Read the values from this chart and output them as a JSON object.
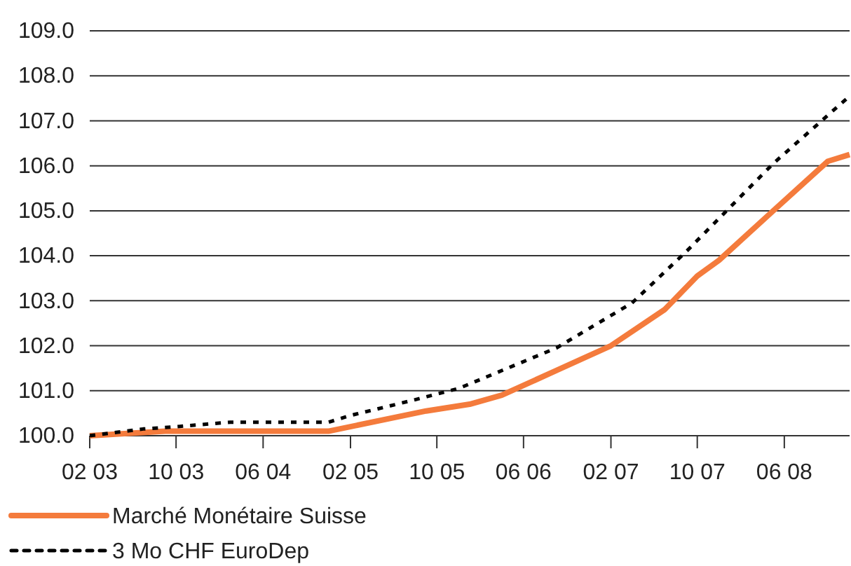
{
  "chart_data": {
    "type": "line",
    "xlim": [
      "2003-02",
      "2008-12"
    ],
    "xticks": [
      {
        "value": "2003-02",
        "label": "02 03"
      },
      {
        "value": "2003-10",
        "label": "10 03"
      },
      {
        "value": "2004-06",
        "label": "06 04"
      },
      {
        "value": "2005-02",
        "label": "02 05"
      },
      {
        "value": "2005-10",
        "label": "10 05"
      },
      {
        "value": "2006-06",
        "label": "06 06"
      },
      {
        "value": "2007-02",
        "label": "02 07"
      },
      {
        "value": "2007-10",
        "label": "10 07"
      },
      {
        "value": "2008-06",
        "label": "06 08"
      }
    ],
    "ylim": [
      100,
      109
    ],
    "yticks": [
      {
        "value": 100,
        "label": "100.0"
      },
      {
        "value": 101,
        "label": "101.0"
      },
      {
        "value": 102,
        "label": "102.0"
      },
      {
        "value": 103,
        "label": "103.0"
      },
      {
        "value": 104,
        "label": "104.0"
      },
      {
        "value": 105,
        "label": "105.0"
      },
      {
        "value": 106,
        "label": "106.0"
      },
      {
        "value": 107,
        "label": "107.0"
      },
      {
        "value": 108,
        "label": "108.0"
      },
      {
        "value": 109,
        "label": "109.0"
      }
    ],
    "grid": "y",
    "legend": "bottom left",
    "series": [
      {
        "name": "Marché Monétaire Suisse",
        "color": "#f47b3c",
        "line_style": "solid",
        "x": [
          "2003-02",
          "2003-09",
          "2004-12",
          "2005-09",
          "2006-01",
          "2006-04",
          "2006-09",
          "2007-02",
          "2007-07",
          "2007-10",
          "2007-12",
          "2008-05",
          "2008-10",
          "2008-12"
        ],
        "values": [
          100.0,
          100.1,
          100.1,
          100.55,
          100.7,
          100.9,
          101.45,
          102.0,
          102.8,
          103.55,
          103.9,
          105.0,
          106.1,
          106.25
        ]
      },
      {
        "name": "3 Mo CHF EuroDep",
        "color": "#000000",
        "line_style": "dotted",
        "x": [
          "2003-02",
          "2003-07",
          "2003-10",
          "2004-03",
          "2004-12",
          "2005-02",
          "2005-08",
          "2005-12",
          "2006-09",
          "2007-04",
          "2007-09",
          "2008-05",
          "2008-12"
        ],
        "values": [
          100.0,
          100.15,
          100.2,
          100.3,
          100.3,
          100.45,
          100.8,
          101.05,
          101.95,
          102.95,
          104.1,
          106.05,
          107.55
        ]
      }
    ]
  }
}
